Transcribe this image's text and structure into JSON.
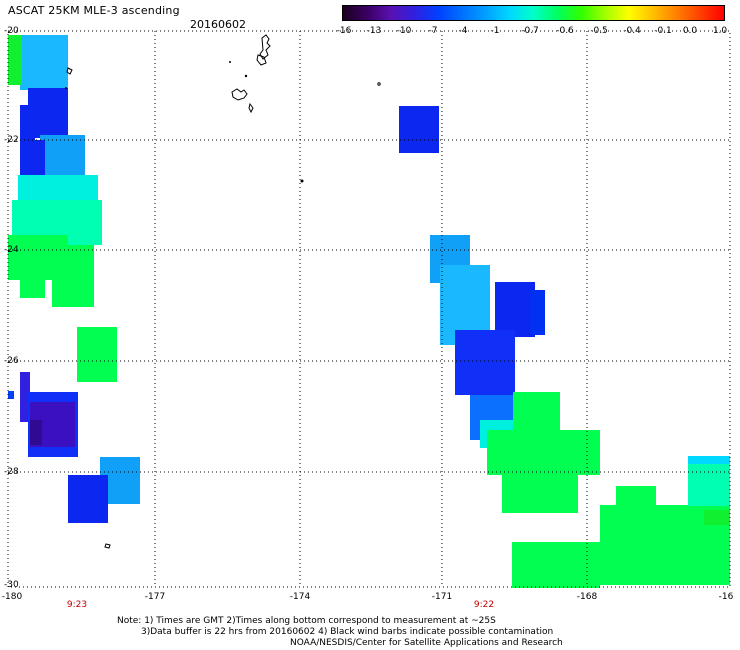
{
  "header": {
    "title": "ASCAT 25KM MLE-3 ascending",
    "date": "20160602"
  },
  "colorbar": {
    "labels": [
      "-16",
      "-13",
      "-10",
      "-7",
      "-4",
      "-1",
      "-0.7",
      "-0.6",
      "-0.5",
      "-0.4",
      "-0.1",
      "0.0",
      "1.0"
    ],
    "colors": [
      "#1a0020",
      "#3a0060",
      "#5a10b0",
      "#3020e0",
      "#0040ff",
      "#0070ff",
      "#00a0ff",
      "#00d8ff",
      "#00ffc8",
      "#00ff60",
      "#30ff00",
      "#a0ff00",
      "#ffff00",
      "#ffc000",
      "#ff8000",
      "#ff4000",
      "#ff0000"
    ]
  },
  "axes": {
    "lat_labels": [
      "-20",
      "-22",
      "-24",
      "-26",
      "-28",
      "-30"
    ],
    "lon_labels": [
      "-180",
      "-177",
      "-174",
      "-171",
      "-168",
      "-16"
    ],
    "time_labels": [
      "9:23",
      "9:22"
    ]
  },
  "colors": {
    "cell_blue": "#0c28f0",
    "cell_dark_blue": "#1030f8",
    "cell_indigo": "#3a10c0",
    "cell_dark_indigo": "#300a90",
    "cell_light_blue": "#10a0f8",
    "cell_sky": "#1ab8ff",
    "cell_cyan": "#00f0e0",
    "cell_teal": "#00ffb0",
    "cell_green": "#00ff50",
    "cell_lime": "#10f030",
    "grid": "#000000",
    "time_label": "#c00000"
  },
  "notes": {
    "line1": "Note: 1) Times are GMT 2)Times along bottom correspond to measurement at ~25S",
    "line2": "3)Data buffer is 22 hrs from 20160602 4) Black wind barbs indicate possible contamination",
    "line3": "NOAA/NESDIS/Center for Satellite Applications and Research"
  }
}
